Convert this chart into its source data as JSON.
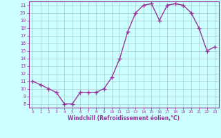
{
  "hours": [
    0,
    1,
    2,
    3,
    4,
    5,
    6,
    7,
    8,
    9,
    10,
    11,
    12,
    13,
    14,
    15,
    16,
    17,
    18,
    19,
    20,
    21,
    22,
    23
  ],
  "values": [
    11,
    10.5,
    10,
    9.5,
    8,
    8,
    9.5,
    9.5,
    9.5,
    10,
    11.5,
    14,
    17.5,
    20,
    21,
    21.2,
    19,
    21,
    21.2,
    21,
    20,
    18,
    15,
    15.5
  ],
  "line_color": "#993399",
  "marker": "+",
  "bg_color": "#ccffff",
  "grid_color": "#aacccc",
  "xlabel": "Windchill (Refroidissement éolien,°C)",
  "ylim_min": 7.5,
  "ylim_max": 21.5,
  "xlim_min": -0.5,
  "xlim_max": 23.5,
  "yticks": [
    8,
    9,
    10,
    11,
    12,
    13,
    14,
    15,
    16,
    17,
    18,
    19,
    20,
    21
  ],
  "xticks": [
    0,
    1,
    2,
    3,
    4,
    5,
    6,
    7,
    8,
    9,
    10,
    11,
    12,
    13,
    14,
    15,
    16,
    17,
    18,
    19,
    20,
    21,
    22,
    23
  ],
  "tick_color": "#993399",
  "label_color": "#993399",
  "spine_color": "#993399"
}
